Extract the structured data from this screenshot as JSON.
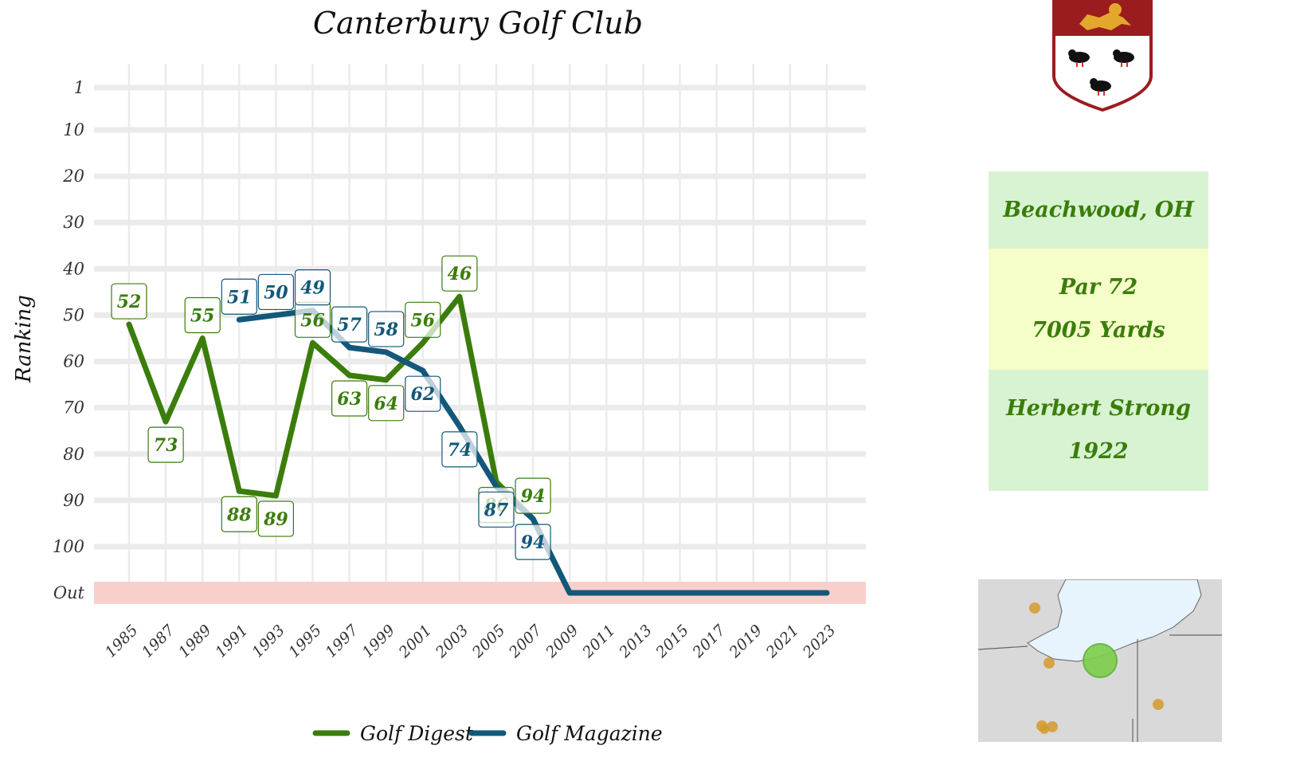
{
  "chart_data": {
    "type": "line",
    "title": "Canterbury Golf Club",
    "xlabel": "",
    "ylabel": "Ranking",
    "x": [
      "1985",
      "1987",
      "1989",
      "1991",
      "1993",
      "1995",
      "1997",
      "1999",
      "2001",
      "2003",
      "2005",
      "2007",
      "2009",
      "2011",
      "2013",
      "2015",
      "2017",
      "2019",
      "2021",
      "2023"
    ],
    "y_ticks": [
      "1",
      "10",
      "20",
      "30",
      "40",
      "50",
      "60",
      "70",
      "80",
      "90",
      "100",
      "Out"
    ],
    "y_reversed": true,
    "grid": true,
    "legend_position": "bottom",
    "out_band_color": "#f9cfcc",
    "series": [
      {
        "name": "Golf Digest",
        "color": "#3a7d0b",
        "values": [
          52,
          73,
          55,
          88,
          89,
          56,
          63,
          64,
          56,
          46,
          86,
          94,
          "Out",
          "Out",
          "Out",
          "Out",
          "Out",
          "Out",
          "Out",
          "Out"
        ],
        "labels": [
          "52",
          "73",
          "55",
          "88",
          "89",
          "56",
          "63",
          "64",
          "56",
          "46",
          "86",
          "94"
        ]
      },
      {
        "name": "Golf Magazine",
        "color": "#12587a",
        "values": [
          null,
          null,
          null,
          51,
          50,
          49,
          57,
          58,
          62,
          74,
          87,
          94,
          "Out",
          "Out",
          "Out",
          "Out",
          "Out",
          "Out",
          "Out",
          "Out"
        ],
        "labels": [
          "51",
          "50",
          "49",
          "57",
          "58",
          "62",
          "74",
          "87",
          "94"
        ]
      }
    ]
  },
  "info": {
    "location": "Beachwood, OH",
    "par": "Par 72",
    "yards": "7005 Yards",
    "architect": "Herbert Strong",
    "year": "1922"
  },
  "colors": {
    "accent_green": "#3a7d0b",
    "accent_blue": "#12587a",
    "crest_red": "#9b1c1f",
    "crest_gold": "#e3a82b"
  },
  "icons": {
    "crest": "club-crest-icon",
    "map": "location-map"
  }
}
